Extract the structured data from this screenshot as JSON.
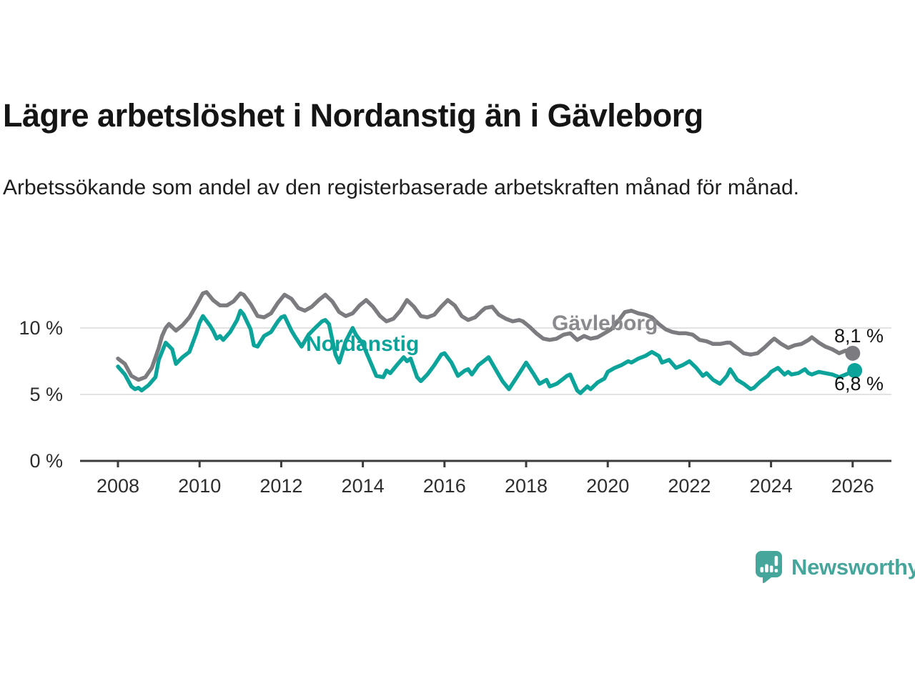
{
  "header": {
    "title": "Lägre arbetslöshet i Nordanstig än i Gävleborg",
    "subtitle": "Arbetssökande som andel av den registerbaserade arbetskraften månad för månad."
  },
  "footer": {
    "brand": "Newsworthy"
  },
  "colors": {
    "nordanstig": "#0BA39A",
    "gavleborg": "#7B7B80",
    "gavleborg_label": "#8A8A8E",
    "nordanstig_label": "#0BA39A",
    "gridline": "#DADADA",
    "axis": "#3B3B3B",
    "tick_text": "#2D2D2D",
    "value_text": "#151515",
    "logo_teal": "#47A69C"
  },
  "chart_data": {
    "type": "line",
    "title": "Lägre arbetslöshet i Nordanstig än i Gävleborg",
    "xlabel": "",
    "ylabel": "",
    "unit": "%",
    "xlim": [
      2007.9,
      2026.3
    ],
    "ylim": [
      0,
      13.5
    ],
    "grid": "horizontal",
    "legend_position": "inline-labels",
    "x_ticks": [
      2008,
      2010,
      2012,
      2014,
      2016,
      2018,
      2020,
      2022,
      2024,
      2026
    ],
    "x_tick_labels": [
      "2008",
      "2010",
      "2012",
      "2014",
      "2016",
      "2018",
      "2020",
      "2022",
      "2024",
      "2026"
    ],
    "y_ticks": [
      {
        "value": 0,
        "label": "0 %"
      },
      {
        "value": 5,
        "label": "5 %"
      },
      {
        "value": 10,
        "label": "10 %"
      }
    ],
    "series": [
      {
        "name": "Gävleborg",
        "color": "#7B7B80",
        "end_value": 8.1,
        "end_label": "8,1 %",
        "points": [
          [
            2008.0,
            7.7
          ],
          [
            2008.17,
            7.3
          ],
          [
            2008.33,
            6.4
          ],
          [
            2008.5,
            6.1
          ],
          [
            2008.67,
            6.3
          ],
          [
            2008.83,
            7.0
          ],
          [
            2009.0,
            8.5
          ],
          [
            2009.08,
            9.4
          ],
          [
            2009.17,
            10.0
          ],
          [
            2009.25,
            10.3
          ],
          [
            2009.42,
            9.8
          ],
          [
            2009.58,
            10.2
          ],
          [
            2009.75,
            10.8
          ],
          [
            2009.92,
            11.7
          ],
          [
            2010.08,
            12.6
          ],
          [
            2010.17,
            12.7
          ],
          [
            2010.33,
            12.1
          ],
          [
            2010.5,
            11.7
          ],
          [
            2010.67,
            11.7
          ],
          [
            2010.83,
            12.0
          ],
          [
            2011.0,
            12.6
          ],
          [
            2011.08,
            12.5
          ],
          [
            2011.25,
            11.8
          ],
          [
            2011.42,
            10.9
          ],
          [
            2011.58,
            10.8
          ],
          [
            2011.75,
            11.1
          ],
          [
            2011.92,
            11.9
          ],
          [
            2012.08,
            12.5
          ],
          [
            2012.25,
            12.2
          ],
          [
            2012.42,
            11.5
          ],
          [
            2012.58,
            11.3
          ],
          [
            2012.75,
            11.6
          ],
          [
            2012.92,
            12.1
          ],
          [
            2013.08,
            12.5
          ],
          [
            2013.25,
            12.0
          ],
          [
            2013.42,
            11.2
          ],
          [
            2013.58,
            10.9
          ],
          [
            2013.75,
            11.1
          ],
          [
            2013.92,
            11.7
          ],
          [
            2014.08,
            12.1
          ],
          [
            2014.25,
            11.6
          ],
          [
            2014.42,
            10.9
          ],
          [
            2014.58,
            10.5
          ],
          [
            2014.75,
            10.7
          ],
          [
            2014.92,
            11.3
          ],
          [
            2015.08,
            12.1
          ],
          [
            2015.25,
            11.6
          ],
          [
            2015.42,
            10.9
          ],
          [
            2015.58,
            10.8
          ],
          [
            2015.75,
            11.0
          ],
          [
            2015.92,
            11.6
          ],
          [
            2016.08,
            12.1
          ],
          [
            2016.25,
            11.7
          ],
          [
            2016.42,
            10.9
          ],
          [
            2016.58,
            10.6
          ],
          [
            2016.75,
            10.8
          ],
          [
            2016.92,
            11.3
          ],
          [
            2017.0,
            11.5
          ],
          [
            2017.17,
            11.6
          ],
          [
            2017.33,
            11.0
          ],
          [
            2017.5,
            10.7
          ],
          [
            2017.67,
            10.5
          ],
          [
            2017.83,
            10.6
          ],
          [
            2017.92,
            10.5
          ],
          [
            2018.08,
            10.1
          ],
          [
            2018.25,
            9.6
          ],
          [
            2018.42,
            9.2
          ],
          [
            2018.58,
            9.1
          ],
          [
            2018.75,
            9.2
          ],
          [
            2018.92,
            9.5
          ],
          [
            2019.08,
            9.6
          ],
          [
            2019.25,
            9.1
          ],
          [
            2019.42,
            9.4
          ],
          [
            2019.58,
            9.2
          ],
          [
            2019.75,
            9.3
          ],
          [
            2019.92,
            9.6
          ],
          [
            2020.08,
            9.9
          ],
          [
            2020.25,
            10.5
          ],
          [
            2020.42,
            11.2
          ],
          [
            2020.58,
            11.3
          ],
          [
            2020.75,
            11.1
          ],
          [
            2020.92,
            11.0
          ],
          [
            2021.08,
            10.8
          ],
          [
            2021.25,
            10.3
          ],
          [
            2021.42,
            9.9
          ],
          [
            2021.58,
            9.7
          ],
          [
            2021.75,
            9.6
          ],
          [
            2021.92,
            9.6
          ],
          [
            2022.08,
            9.5
          ],
          [
            2022.25,
            9.1
          ],
          [
            2022.42,
            9.0
          ],
          [
            2022.58,
            8.8
          ],
          [
            2022.75,
            8.8
          ],
          [
            2022.92,
            8.9
          ],
          [
            2023.0,
            8.9
          ],
          [
            2023.17,
            8.5
          ],
          [
            2023.33,
            8.1
          ],
          [
            2023.5,
            8.0
          ],
          [
            2023.67,
            8.1
          ],
          [
            2023.83,
            8.5
          ],
          [
            2024.0,
            9.0
          ],
          [
            2024.08,
            9.2
          ],
          [
            2024.25,
            8.8
          ],
          [
            2024.42,
            8.5
          ],
          [
            2024.58,
            8.7
          ],
          [
            2024.75,
            8.8
          ],
          [
            2024.92,
            9.1
          ],
          [
            2025.0,
            9.3
          ],
          [
            2025.17,
            8.9
          ],
          [
            2025.33,
            8.6
          ],
          [
            2025.5,
            8.4
          ],
          [
            2025.67,
            8.1
          ],
          [
            2025.83,
            8.3
          ],
          [
            2026.0,
            8.1
          ]
        ]
      },
      {
        "name": "Nordanstig",
        "color": "#0BA39A",
        "end_value": 6.8,
        "end_label": "6,8 %",
        "points": [
          [
            2008.0,
            7.1
          ],
          [
            2008.17,
            6.5
          ],
          [
            2008.33,
            5.6
          ],
          [
            2008.42,
            5.4
          ],
          [
            2008.5,
            5.5
          ],
          [
            2008.58,
            5.3
          ],
          [
            2008.75,
            5.7
          ],
          [
            2008.92,
            6.3
          ],
          [
            2009.0,
            7.6
          ],
          [
            2009.17,
            8.9
          ],
          [
            2009.33,
            8.4
          ],
          [
            2009.42,
            7.3
          ],
          [
            2009.58,
            7.8
          ],
          [
            2009.75,
            8.2
          ],
          [
            2009.92,
            9.6
          ],
          [
            2010.0,
            10.4
          ],
          [
            2010.08,
            10.9
          ],
          [
            2010.25,
            10.2
          ],
          [
            2010.33,
            9.8
          ],
          [
            2010.42,
            9.2
          ],
          [
            2010.5,
            9.4
          ],
          [
            2010.58,
            9.1
          ],
          [
            2010.75,
            9.7
          ],
          [
            2010.92,
            10.6
          ],
          [
            2011.0,
            11.3
          ],
          [
            2011.08,
            11.0
          ],
          [
            2011.25,
            9.9
          ],
          [
            2011.33,
            8.7
          ],
          [
            2011.42,
            8.6
          ],
          [
            2011.58,
            9.4
          ],
          [
            2011.75,
            9.7
          ],
          [
            2011.92,
            10.5
          ],
          [
            2012.0,
            10.8
          ],
          [
            2012.08,
            10.9
          ],
          [
            2012.25,
            9.8
          ],
          [
            2012.33,
            9.4
          ],
          [
            2012.5,
            8.6
          ],
          [
            2012.67,
            9.5
          ],
          [
            2012.83,
            10.0
          ],
          [
            2013.0,
            10.5
          ],
          [
            2013.08,
            10.6
          ],
          [
            2013.17,
            10.3
          ],
          [
            2013.33,
            8.0
          ],
          [
            2013.42,
            7.4
          ],
          [
            2013.58,
            9.0
          ],
          [
            2013.75,
            10.0
          ],
          [
            2013.83,
            9.5
          ],
          [
            2014.0,
            8.8
          ],
          [
            2014.08,
            8.2
          ],
          [
            2014.33,
            6.4
          ],
          [
            2014.5,
            6.3
          ],
          [
            2014.58,
            6.8
          ],
          [
            2014.67,
            6.6
          ],
          [
            2014.83,
            7.2
          ],
          [
            2015.0,
            7.8
          ],
          [
            2015.08,
            7.5
          ],
          [
            2015.17,
            7.7
          ],
          [
            2015.33,
            6.3
          ],
          [
            2015.42,
            6.0
          ],
          [
            2015.58,
            6.5
          ],
          [
            2015.75,
            7.2
          ],
          [
            2015.92,
            8.0
          ],
          [
            2016.0,
            8.1
          ],
          [
            2016.17,
            7.4
          ],
          [
            2016.33,
            6.4
          ],
          [
            2016.5,
            6.8
          ],
          [
            2016.58,
            6.9
          ],
          [
            2016.67,
            6.5
          ],
          [
            2016.83,
            7.2
          ],
          [
            2017.0,
            7.6
          ],
          [
            2017.08,
            7.8
          ],
          [
            2017.25,
            6.9
          ],
          [
            2017.42,
            6.0
          ],
          [
            2017.58,
            5.4
          ],
          [
            2017.75,
            6.2
          ],
          [
            2017.92,
            7.0
          ],
          [
            2018.0,
            7.4
          ],
          [
            2018.17,
            6.6
          ],
          [
            2018.33,
            5.8
          ],
          [
            2018.5,
            6.1
          ],
          [
            2018.58,
            5.6
          ],
          [
            2018.75,
            5.8
          ],
          [
            2018.92,
            6.2
          ],
          [
            2019.0,
            6.4
          ],
          [
            2019.08,
            6.5
          ],
          [
            2019.25,
            5.3
          ],
          [
            2019.33,
            5.1
          ],
          [
            2019.5,
            5.6
          ],
          [
            2019.58,
            5.4
          ],
          [
            2019.75,
            5.9
          ],
          [
            2019.92,
            6.2
          ],
          [
            2020.0,
            6.7
          ],
          [
            2020.17,
            7.0
          ],
          [
            2020.33,
            7.2
          ],
          [
            2020.5,
            7.5
          ],
          [
            2020.58,
            7.4
          ],
          [
            2020.75,
            7.7
          ],
          [
            2020.92,
            7.9
          ],
          [
            2021.08,
            8.2
          ],
          [
            2021.25,
            7.9
          ],
          [
            2021.33,
            7.4
          ],
          [
            2021.5,
            7.6
          ],
          [
            2021.67,
            7.0
          ],
          [
            2021.83,
            7.2
          ],
          [
            2022.0,
            7.5
          ],
          [
            2022.17,
            7.0
          ],
          [
            2022.33,
            6.4
          ],
          [
            2022.42,
            6.6
          ],
          [
            2022.58,
            6.1
          ],
          [
            2022.75,
            5.8
          ],
          [
            2022.92,
            6.4
          ],
          [
            2023.0,
            6.9
          ],
          [
            2023.17,
            6.1
          ],
          [
            2023.33,
            5.8
          ],
          [
            2023.5,
            5.4
          ],
          [
            2023.58,
            5.5
          ],
          [
            2023.75,
            6.0
          ],
          [
            2023.92,
            6.4
          ],
          [
            2024.0,
            6.7
          ],
          [
            2024.17,
            7.0
          ],
          [
            2024.33,
            6.5
          ],
          [
            2024.42,
            6.7
          ],
          [
            2024.5,
            6.5
          ],
          [
            2024.67,
            6.6
          ],
          [
            2024.83,
            6.9
          ],
          [
            2024.92,
            6.6
          ],
          [
            2025.0,
            6.5
          ],
          [
            2025.17,
            6.7
          ],
          [
            2025.33,
            6.6
          ],
          [
            2025.5,
            6.5
          ],
          [
            2025.67,
            6.3
          ],
          [
            2025.83,
            6.5
          ],
          [
            2026.05,
            6.8
          ]
        ]
      }
    ],
    "annotations": [
      {
        "text": "Gävleborg",
        "series": "Gävleborg"
      },
      {
        "text": "Nordanstig",
        "series": "Nordanstig"
      },
      {
        "text": "8,1 %",
        "series": "Gävleborg"
      },
      {
        "text": "6,8 %",
        "series": "Nordanstig"
      }
    ]
  }
}
